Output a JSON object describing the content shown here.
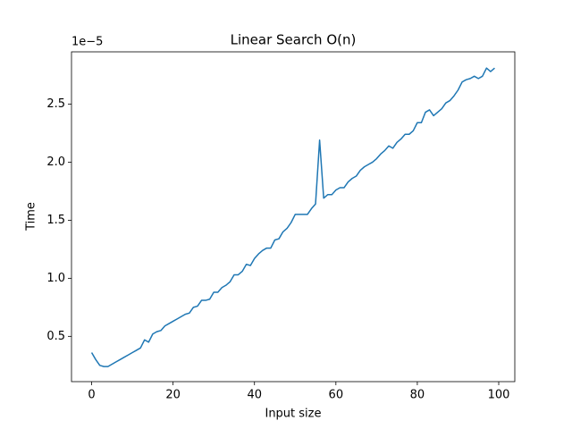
{
  "chart_data": {
    "type": "line",
    "title": "Linear Search O(n)",
    "xlabel": "Input size",
    "ylabel": "Time",
    "y_offset_text": "1e−5",
    "x": [
      0,
      1,
      2,
      3,
      4,
      5,
      6,
      7,
      8,
      9,
      10,
      11,
      12,
      13,
      14,
      15,
      16,
      17,
      18,
      19,
      20,
      21,
      22,
      23,
      24,
      25,
      26,
      27,
      28,
      29,
      30,
      31,
      32,
      33,
      34,
      35,
      36,
      37,
      38,
      39,
      40,
      41,
      42,
      43,
      44,
      45,
      46,
      47,
      48,
      49,
      50,
      51,
      52,
      53,
      54,
      55,
      56,
      57,
      58,
      59,
      60,
      61,
      62,
      63,
      64,
      65,
      66,
      67,
      68,
      69,
      70,
      71,
      72,
      73,
      74,
      75,
      76,
      77,
      78,
      79,
      80,
      81,
      82,
      83,
      84,
      85,
      86,
      87,
      88,
      89,
      90,
      91,
      92,
      93,
      94,
      95,
      96,
      97,
      98,
      99
    ],
    "values": [
      0.36,
      0.3,
      0.25,
      0.24,
      0.24,
      0.26,
      0.28,
      0.3,
      0.32,
      0.34,
      0.36,
      0.38,
      0.4,
      0.47,
      0.45,
      0.52,
      0.54,
      0.55,
      0.59,
      0.61,
      0.63,
      0.65,
      0.67,
      0.69,
      0.7,
      0.75,
      0.76,
      0.81,
      0.81,
      0.82,
      0.88,
      0.88,
      0.92,
      0.94,
      0.97,
      1.03,
      1.03,
      1.06,
      1.12,
      1.11,
      1.17,
      1.21,
      1.24,
      1.26,
      1.26,
      1.33,
      1.34,
      1.4,
      1.43,
      1.48,
      1.55,
      1.55,
      1.55,
      1.55,
      1.6,
      1.64,
      2.19,
      1.69,
      1.72,
      1.72,
      1.76,
      1.78,
      1.78,
      1.83,
      1.86,
      1.88,
      1.93,
      1.96,
      1.98,
      2.0,
      2.03,
      2.07,
      2.1,
      2.14,
      2.12,
      2.17,
      2.2,
      2.24,
      2.24,
      2.27,
      2.34,
      2.34,
      2.43,
      2.45,
      2.4,
      2.43,
      2.46,
      2.51,
      2.53,
      2.57,
      2.62,
      2.69,
      2.71,
      2.72,
      2.74,
      2.72,
      2.74,
      2.81,
      2.78,
      2.81
    ],
    "color": "#1f77b4",
    "xlim": [
      -4.95,
      103.95
    ],
    "xticks": [
      0,
      20,
      40,
      60,
      80,
      100
    ],
    "ylim": [
      0.11,
      2.95
    ],
    "yticks": [
      0.5,
      {
        "value": 1,
        "label": "1.0"
      },
      1.5,
      {
        "value": 2,
        "label": "2.0"
      },
      2.5
    ]
  }
}
